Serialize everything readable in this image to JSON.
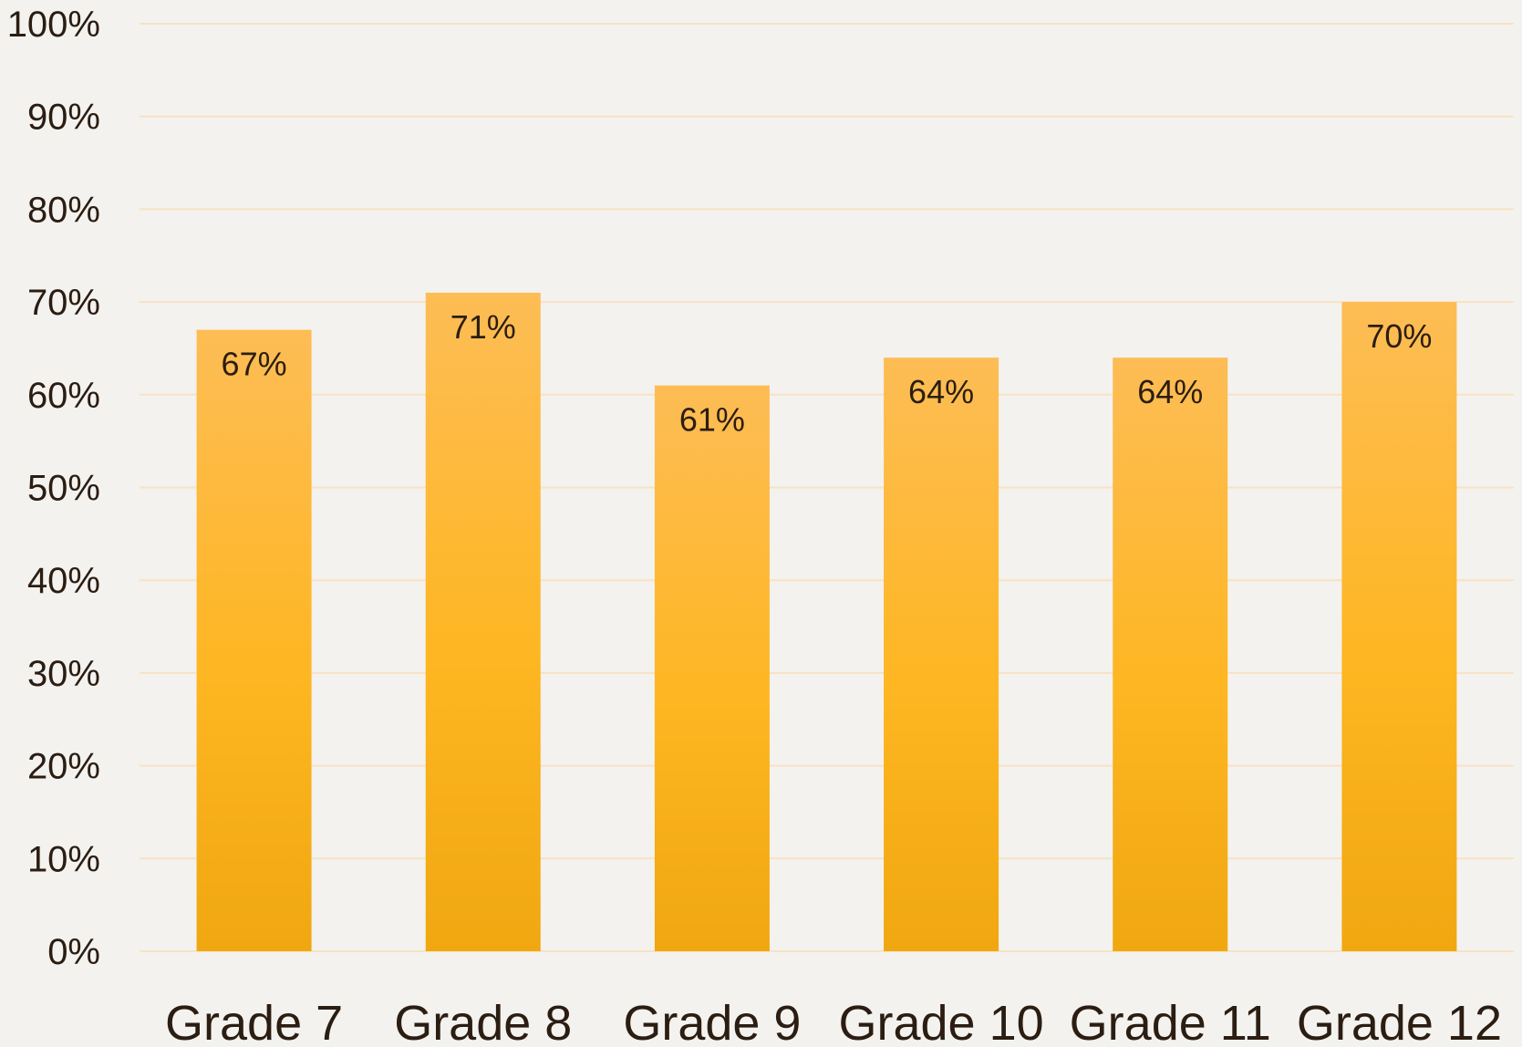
{
  "chart_data": {
    "type": "bar",
    "title": "",
    "xlabel": "",
    "ylabel": "",
    "categories": [
      "Grade 7",
      "Grade 8",
      "Grade 9",
      "Grade 10",
      "Grade 11",
      "Grade 12"
    ],
    "series": [
      {
        "values": [
          67,
          71,
          61,
          64,
          64,
          70
        ],
        "data_labels": [
          "67%",
          "71%",
          "61%",
          "64%",
          "64%",
          "70%"
        ],
        "color": "#fbb829"
      }
    ],
    "ylim": [
      0,
      100
    ],
    "y_ticks": [
      0,
      10,
      20,
      30,
      40,
      50,
      60,
      70,
      80,
      90,
      100
    ],
    "y_tick_labels": [
      "0%",
      "10%",
      "20%",
      "30%",
      "40%",
      "50%",
      "60%",
      "70%",
      "80%",
      "90%",
      "100%"
    ],
    "grid": true,
    "legend": "none"
  },
  "colors": {
    "background": "#f3f2ef",
    "gridline": "#f7e2c4",
    "bar_top": "#fdbd55",
    "bar_mid": "#feb622",
    "bar_bottom": "#f0a710",
    "text": "#2b1d12"
  }
}
